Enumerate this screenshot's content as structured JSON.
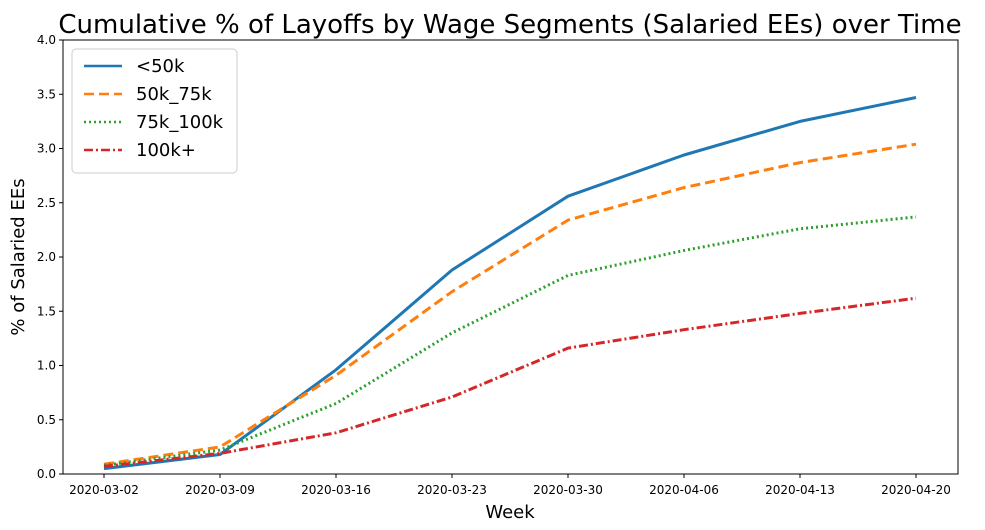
{
  "chart_data": {
    "type": "line",
    "title": "Cumulative % of Layoffs by Wage Segments (Salaried EEs) over Time",
    "xlabel": "Week",
    "ylabel": "% of Salaried EEs",
    "categories": [
      "2020-03-02",
      "2020-03-09",
      "2020-03-16",
      "2020-03-23",
      "2020-03-30",
      "2020-04-06",
      "2020-04-13",
      "2020-04-20"
    ],
    "ylim": [
      0,
      4.0
    ],
    "yticks": [
      "0.0",
      "0.5",
      "1.0",
      "1.5",
      "2.0",
      "2.5",
      "3.0",
      "3.5",
      "4.0"
    ],
    "grid": false,
    "legend_position": "top-left",
    "series": [
      {
        "name": "<50k",
        "values": [
          0.05,
          0.18,
          0.96,
          1.88,
          2.56,
          2.94,
          3.25,
          3.47
        ],
        "color": "#1f77b4",
        "style": "solid"
      },
      {
        "name": "50k_75k",
        "values": [
          0.09,
          0.25,
          0.91,
          1.68,
          2.34,
          2.64,
          2.87,
          3.04
        ],
        "color": "#ff7f0e",
        "style": "dashed"
      },
      {
        "name": "75k_100k",
        "values": [
          0.08,
          0.22,
          0.65,
          1.3,
          1.83,
          2.06,
          2.26,
          2.37
        ],
        "color": "#2ca02c",
        "style": "dotted"
      },
      {
        "name": "100k+",
        "values": [
          0.07,
          0.19,
          0.38,
          0.71,
          1.16,
          1.33,
          1.48,
          1.62
        ],
        "color": "#d62728",
        "style": "dashdot"
      }
    ]
  }
}
